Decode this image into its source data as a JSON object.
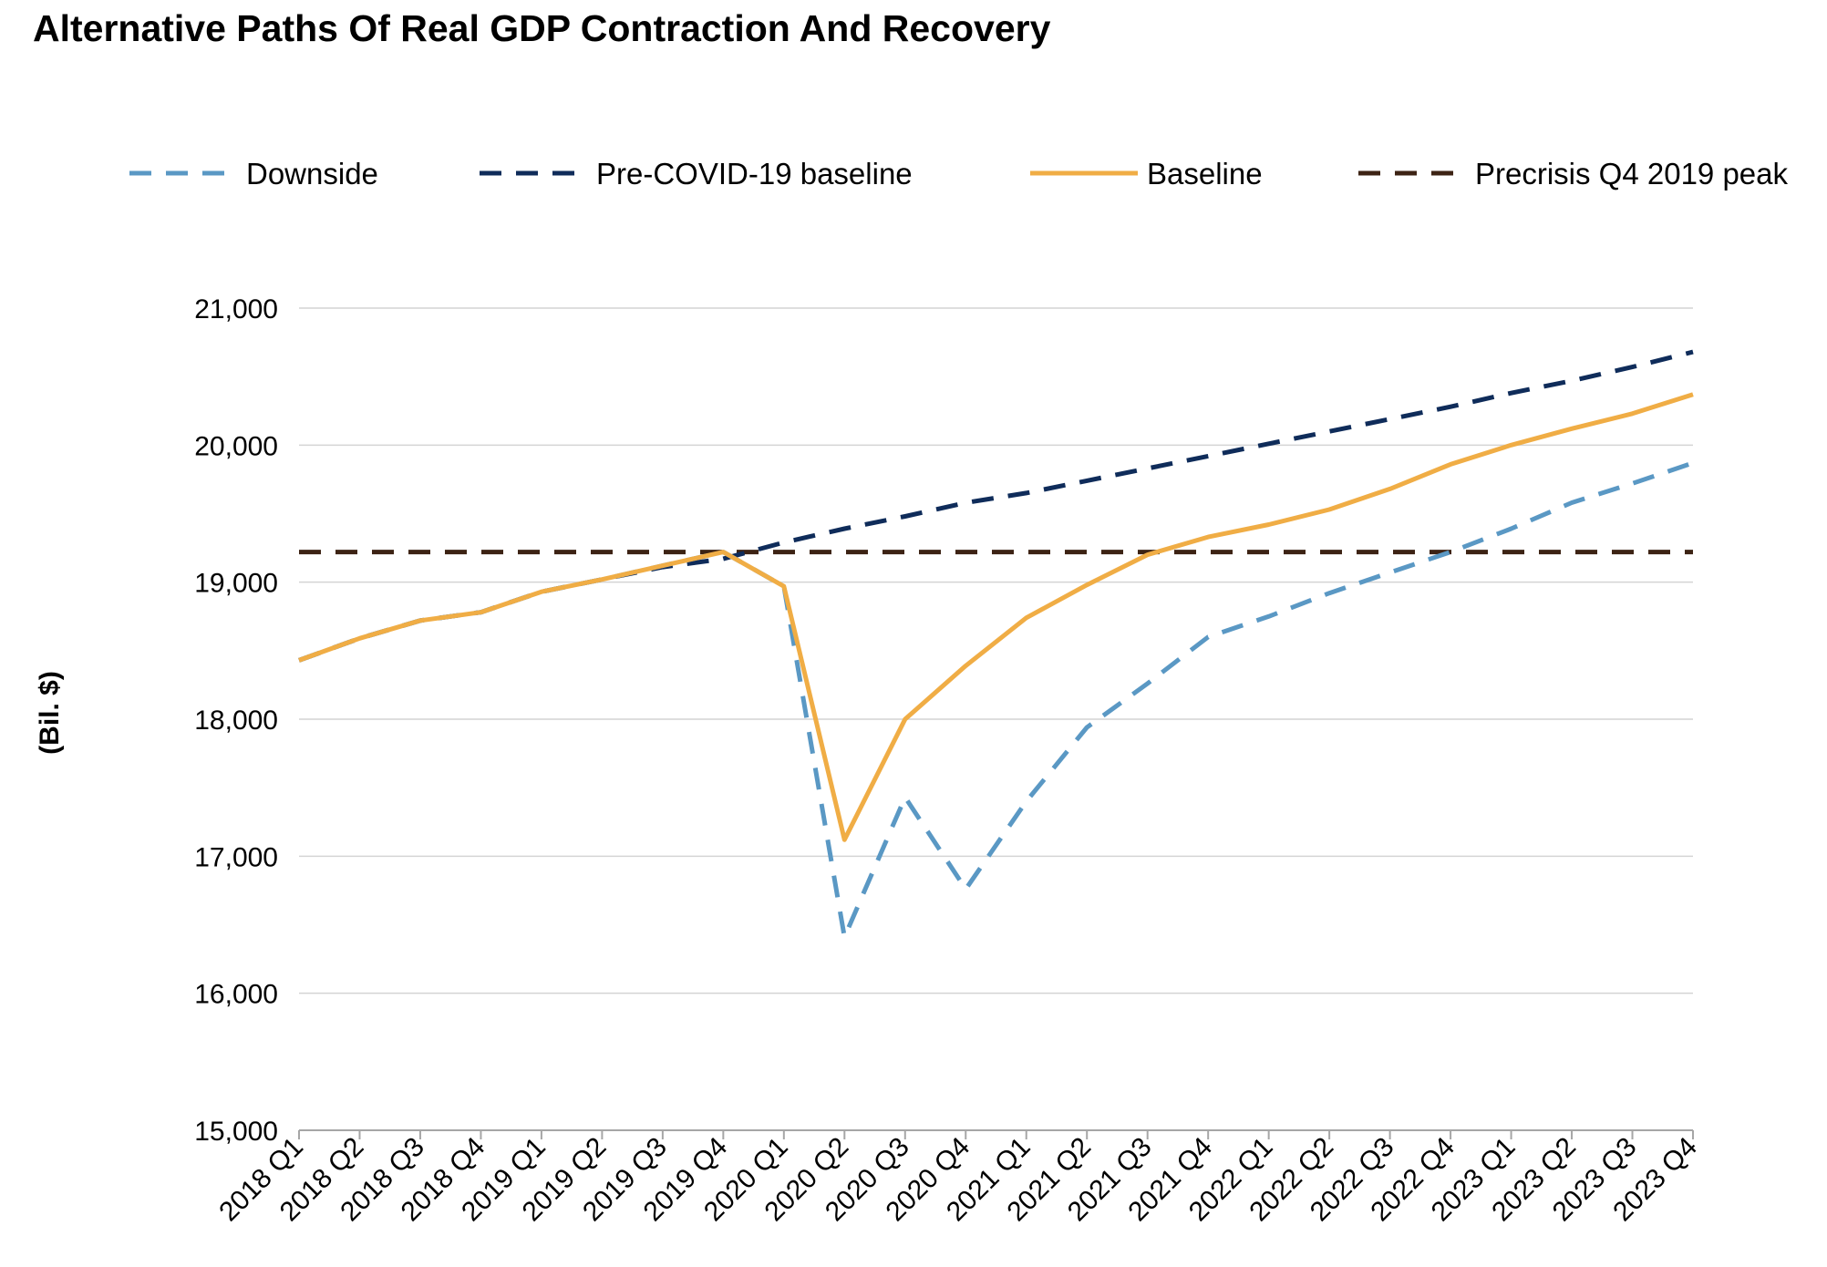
{
  "chart_data": {
    "type": "line",
    "title": "Alternative Paths Of Real GDP Contraction And Recovery",
    "ylabel": "(Bil. $)",
    "xlabel": "",
    "ylim": [
      15000,
      21000
    ],
    "yticks": [
      15000,
      16000,
      17000,
      18000,
      19000,
      20000,
      21000
    ],
    "ytick_labels": [
      "15,000",
      "16,000",
      "17,000",
      "18,000",
      "19,000",
      "20,000",
      "21,000"
    ],
    "grid": "horizontal",
    "legend_position": "top",
    "categories": [
      "2018 Q1",
      "2018 Q2",
      "2018 Q3",
      "2018 Q4",
      "2019 Q1",
      "2019 Q2",
      "2019 Q3",
      "2019 Q4",
      "2020 Q1",
      "2020 Q2",
      "2020 Q3",
      "2020 Q4",
      "2021 Q1",
      "2021 Q2",
      "2021 Q3",
      "2021 Q4",
      "2022 Q1",
      "2022 Q2",
      "2022 Q3",
      "2022 Q4",
      "2023 Q1",
      "2023 Q2",
      "2023 Q3",
      "2023 Q4"
    ],
    "series": [
      {
        "name": "Downside",
        "color": "#5a98c4",
        "style": "dashed",
        "values": [
          18430,
          18590,
          18720,
          18780,
          18930,
          19020,
          19120,
          19220,
          18970,
          16410,
          17430,
          16760,
          17400,
          17940,
          18260,
          18600,
          18750,
          18920,
          19070,
          19220,
          19390,
          19580,
          19720,
          19870
        ]
      },
      {
        "name": "Pre-COVID-19 baseline",
        "color": "#0f2c5a",
        "style": "dashed",
        "values": [
          18430,
          18590,
          18720,
          18780,
          18930,
          19020,
          19110,
          19170,
          19290,
          19390,
          19480,
          19580,
          19650,
          19740,
          19830,
          19920,
          20010,
          20100,
          20190,
          20280,
          20380,
          20470,
          20570,
          20680
        ]
      },
      {
        "name": "Baseline",
        "color": "#f0ad45",
        "style": "solid",
        "values": [
          18430,
          18590,
          18720,
          18780,
          18930,
          19020,
          19120,
          19220,
          18970,
          17120,
          18000,
          18390,
          18740,
          18980,
          19200,
          19330,
          19420,
          19530,
          19680,
          19860,
          20000,
          20120,
          20230,
          20370
        ]
      },
      {
        "name": "Precrisis Q4 2019 peak",
        "color": "#3d2314",
        "style": "dashed",
        "values": [
          19220,
          19220,
          19220,
          19220,
          19220,
          19220,
          19220,
          19220,
          19220,
          19220,
          19220,
          19220,
          19220,
          19220,
          19220,
          19220,
          19220,
          19220,
          19220,
          19220,
          19220,
          19220,
          19220,
          19220
        ]
      }
    ]
  }
}
